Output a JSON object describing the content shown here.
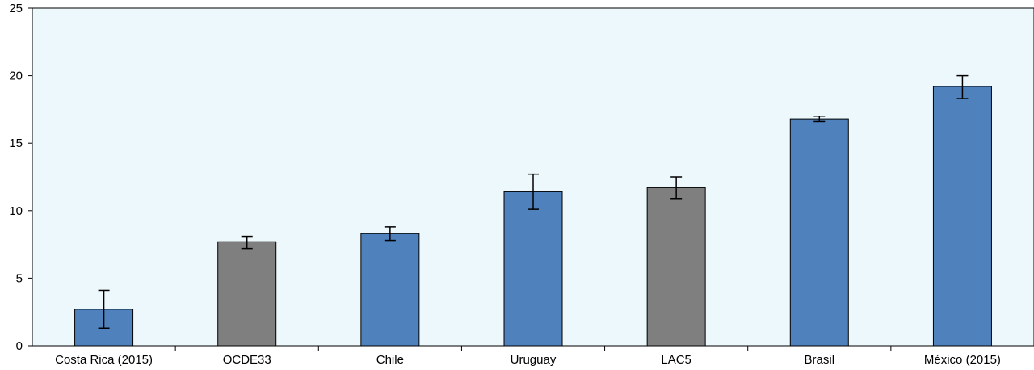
{
  "chart_data": {
    "type": "bar",
    "title": "",
    "xlabel": "",
    "ylabel": "",
    "categories": [
      "Costa Rica (2015)",
      "OCDE33",
      "Chile",
      "Uruguay",
      "LAC5",
      "Brasil",
      "México (2015)"
    ],
    "values": [
      2.7,
      7.7,
      8.3,
      11.4,
      11.7,
      16.8,
      19.2
    ],
    "error_low": [
      1.3,
      7.2,
      7.8,
      10.1,
      10.9,
      16.6,
      18.3
    ],
    "error_high": [
      4.1,
      8.1,
      8.8,
      12.7,
      12.5,
      17.0,
      20.0
    ],
    "bar_colors": [
      "#4f81bd",
      "#7f7f7f",
      "#4f81bd",
      "#4f81bd",
      "#7f7f7f",
      "#4f81bd",
      "#4f81bd"
    ],
    "ylim": [
      0,
      25
    ],
    "yticks": [
      0,
      5,
      10,
      15,
      20,
      25
    ],
    "plot_background": "#edf8fc",
    "grid": false,
    "legend": "none"
  }
}
